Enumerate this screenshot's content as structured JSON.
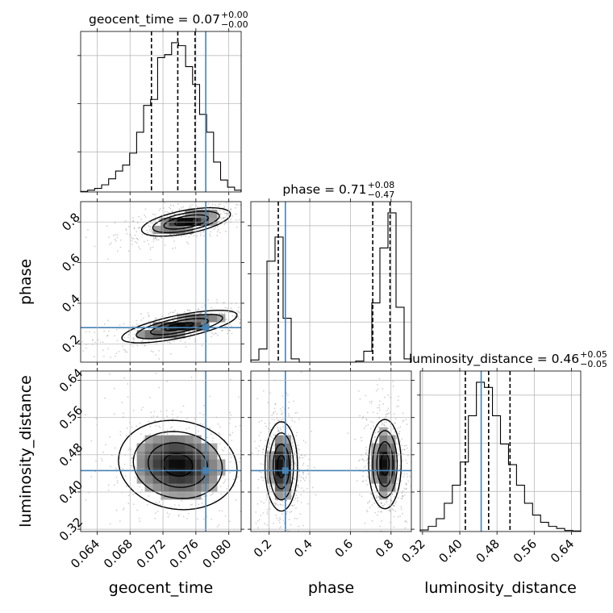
{
  "chart_data": {
    "type": "corner",
    "parameters": [
      "geocent_time",
      "phase",
      "luminosity_distance"
    ],
    "truth": {
      "geocent_time": 0.0772,
      "phase": 0.28,
      "luminosity_distance": 0.446
    },
    "ranges": {
      "geocent_time": [
        0.062,
        0.0815
      ],
      "phase": [
        0.11,
        0.9
      ],
      "luminosity_distance": [
        0.315,
        0.66
      ]
    },
    "ticks": {
      "geocent_time": {
        "values": [
          0.064,
          0.068,
          0.072,
          0.076,
          0.08
        ],
        "labels": [
          "0.064",
          "0.068",
          "0.072",
          "0.076",
          "0.080"
        ]
      },
      "phase": {
        "values": [
          0.2,
          0.4,
          0.6,
          0.8
        ],
        "labels": [
          "0.2",
          "0.4",
          "0.6",
          "0.8"
        ]
      },
      "luminosity_distance": {
        "values": [
          0.32,
          0.4,
          0.48,
          0.56,
          0.64
        ],
        "labels": [
          "0.32",
          "0.40",
          "0.48",
          "0.56",
          "0.64"
        ]
      }
    },
    "diag_titles": [
      {
        "param": "geocent_time",
        "name": "geocent_time",
        "median": "0.07",
        "plus": "+0.00",
        "minus": "−0.00"
      },
      {
        "param": "phase",
        "name": "phase",
        "median": "0.71",
        "plus": "+0.08",
        "minus": "−0.47"
      },
      {
        "param": "luminosity_distance",
        "name": "luminosity_distance",
        "median": "0.46",
        "plus": "+0.05",
        "minus": "−0.05"
      }
    ],
    "quantile_lines": {
      "geocent_time": [
        0.0706,
        0.0738,
        0.0759
      ],
      "phase": [
        0.245,
        0.71,
        0.795
      ],
      "luminosity_distance": [
        0.412,
        0.462,
        0.508
      ]
    },
    "histograms": {
      "geocent_time": {
        "edges": [
          0.062,
          0.06285,
          0.0637,
          0.06455,
          0.0654,
          0.06625,
          0.0671,
          0.06795,
          0.0688,
          0.06965,
          0.0705,
          0.07135,
          0.0722,
          0.07305,
          0.0739,
          0.07475,
          0.0756,
          0.07645,
          0.0773,
          0.07815,
          0.079,
          0.07985,
          0.0807,
          0.0815
        ],
        "counts": [
          1,
          3,
          6,
          12,
          22,
          35,
          45,
          65,
          100,
          145,
          155,
          225,
          230,
          250,
          245,
          210,
          180,
          130,
          100,
          50,
          20,
          8,
          3
        ]
      },
      "phase": {
        "edges": [
          0.11,
          0.1497,
          0.1894,
          0.2291,
          0.2688,
          0.3085,
          0.3482,
          0.3879,
          0.4276,
          0.4673,
          0.507,
          0.5467,
          0.5864,
          0.6261,
          0.6658,
          0.7055,
          0.7452,
          0.7849,
          0.8246,
          0.8643,
          0.9
        ],
        "counts": [
          10,
          60,
          460,
          570,
          200,
          15,
          0,
          0,
          0,
          0,
          0,
          0,
          0,
          5,
          50,
          270,
          520,
          680,
          250,
          15
        ]
      },
      "luminosity_distance": {
        "edges": [
          0.315,
          0.33225,
          0.3495,
          0.36675,
          0.384,
          0.40125,
          0.4185,
          0.43575,
          0.453,
          0.47025,
          0.4875,
          0.50475,
          0.522,
          0.53925,
          0.5565,
          0.57375,
          0.591,
          0.60825,
          0.6255,
          0.64275,
          0.66
        ],
        "counts": [
          3,
          10,
          25,
          55,
          90,
          135,
          225,
          290,
          280,
          225,
          170,
          130,
          90,
          55,
          32,
          18,
          10,
          6,
          2,
          1
        ]
      }
    },
    "density_blobs": {
      "phase|geocent_time": [
        {
          "x": 0.0748,
          "y": 0.8,
          "sx": 0.0027,
          "sy": 0.035,
          "rho": 0.55
        },
        {
          "x": 0.074,
          "y": 0.285,
          "sx": 0.0035,
          "sy": 0.04,
          "rho": 0.7
        }
      ],
      "luminosity_distance|geocent_time": [
        {
          "x": 0.0738,
          "y": 0.458,
          "sx": 0.0036,
          "sy": 0.048,
          "rho": -0.1
        }
      ],
      "luminosity_distance|phase": [
        {
          "x": 0.26,
          "y": 0.455,
          "sx": 0.04,
          "sy": 0.048,
          "rho": 0.0
        },
        {
          "x": 0.77,
          "y": 0.46,
          "sx": 0.04,
          "sy": 0.048,
          "rho": 0.0
        }
      ]
    }
  }
}
